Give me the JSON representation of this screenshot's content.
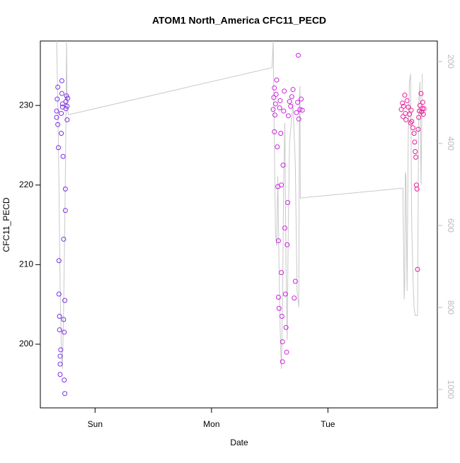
{
  "chart_data": {
    "type": "scatter",
    "title": "ATOM1 North_America CFC11_PECD",
    "xlabel": "Date",
    "ylabel": "CFC11_PECD",
    "xlim": [
      -0.47,
      2.94
    ],
    "xticks": [
      {
        "value": 0,
        "label": "Sun"
      },
      {
        "value": 1,
        "label": "Mon"
      },
      {
        "value": 2,
        "label": "Tue"
      }
    ],
    "ylim": [
      192,
      238.1
    ],
    "yticks": [
      200,
      210,
      220,
      230
    ],
    "y2lim": [
      1045,
      150
    ],
    "y2ticks": [
      200,
      400,
      600,
      800,
      1000
    ],
    "series": [
      {
        "color": "#7b2ee6",
        "x": [
          -0.33,
          -0.33,
          -0.325,
          -0.32,
          -0.32,
          -0.315,
          -0.31,
          -0.31,
          -0.305,
          -0.305,
          -0.3,
          -0.3,
          -0.3,
          -0.295,
          -0.29,
          -0.29,
          -0.285,
          -0.285,
          -0.28,
          -0.28,
          -0.275,
          -0.27,
          -0.27,
          -0.265,
          -0.265,
          -0.26,
          -0.26,
          -0.255,
          -0.255,
          -0.25,
          -0.25,
          -0.245,
          -0.24,
          -0.24,
          -0.235
        ],
        "values": [
          228.5,
          229.3,
          230.8,
          227.6,
          232.3,
          224.7,
          210.5,
          206.3,
          201.8,
          203.5,
          198.5,
          196.2,
          197.5,
          199.3,
          229.0,
          226.5,
          231.5,
          233.1,
          229.8,
          230.2,
          223.6,
          213.2,
          203.1,
          201.5,
          195.5,
          193.8,
          205.5,
          219.5,
          216.8,
          229.6,
          230.5,
          231.2,
          228.2,
          229.9,
          230.9
        ]
      },
      {
        "color": "#cc22e0",
        "x": [
          1.53,
          1.535,
          1.54,
          1.54,
          1.545,
          1.55,
          1.555,
          1.56,
          1.565,
          1.57,
          1.575,
          1.575,
          1.58,
          1.585,
          1.59,
          1.595,
          1.6,
          1.6,
          1.605,
          1.61,
          1.61,
          1.615,
          1.62,
          1.625,
          1.63,
          1.635,
          1.64,
          1.645,
          1.65,
          1.655,
          1.66,
          1.67,
          1.68,
          1.69,
          1.7,
          1.71,
          1.72,
          1.73,
          1.74,
          1.745,
          1.75,
          1.76,
          1.77,
          1.78
        ],
        "values": [
          229.5,
          231.0,
          232.2,
          226.7,
          228.8,
          230.2,
          231.4,
          233.2,
          224.8,
          219.8,
          213.0,
          205.9,
          204.5,
          229.7,
          230.6,
          226.5,
          220.0,
          209.0,
          203.5,
          200.3,
          197.8,
          222.5,
          229.3,
          231.8,
          214.6,
          206.3,
          202.1,
          199.0,
          212.5,
          217.8,
          228.7,
          230.5,
          229.9,
          231.1,
          232.0,
          205.8,
          207.9,
          229.1,
          230.4,
          236.3,
          228.3,
          229.5,
          230.8,
          229.4
        ]
      },
      {
        "color": "#f0189c",
        "x": [
          2.63,
          2.64,
          2.645,
          2.65,
          2.66,
          2.665,
          2.67,
          2.68,
          2.69,
          2.7,
          2.71,
          2.715,
          2.72,
          2.73,
          2.74,
          2.745,
          2.75,
          2.755,
          2.76,
          2.765,
          2.77,
          2.775,
          2.78,
          2.785,
          2.79,
          2.8,
          2.805,
          2.81,
          2.815,
          2.82,
          2.825
        ],
        "values": [
          229.5,
          230.3,
          228.6,
          229.9,
          231.3,
          229.0,
          228.2,
          230.6,
          229.8,
          228.9,
          227.8,
          229.4,
          228.0,
          227.2,
          226.5,
          225.4,
          224.2,
          223.5,
          220.0,
          219.5,
          209.4,
          227.0,
          228.5,
          229.3,
          230.0,
          231.5,
          229.2,
          229.6,
          230.4,
          228.9,
          229.6
        ]
      },
      {
        "type": "line",
        "axis": "y2",
        "color": "#c8c8c8",
        "x": [
          -0.33,
          -0.32,
          -0.31,
          -0.3,
          -0.29,
          -0.28,
          -0.27,
          -0.26,
          -0.25,
          -0.245,
          -0.24,
          -0.23,
          1.52,
          1.53,
          1.54,
          1.55,
          1.56,
          1.57,
          1.58,
          1.59,
          1.6,
          1.61,
          1.62,
          1.63,
          1.64,
          1.65,
          1.66,
          1.67,
          1.7,
          1.72,
          1.735,
          1.75,
          1.755,
          1.76,
          1.763,
          2.644,
          2.655,
          2.66,
          2.665,
          2.67,
          2.68,
          2.69,
          2.7,
          2.71,
          2.72,
          2.73,
          2.74,
          2.75,
          2.77,
          2.78,
          2.79,
          2.8,
          2.81
        ],
        "values": [
          150,
          300,
          500,
          750,
          900,
          950,
          800,
          600,
          350,
          150,
          300,
          330,
          215,
          150,
          400,
          620,
          650,
          480,
          700,
          850,
          950,
          800,
          500,
          350,
          700,
          880,
          600,
          400,
          300,
          450,
          760,
          800,
          300,
          260,
          533,
          509,
          780,
          740,
          470,
          480,
          760,
          380,
          250,
          230,
          600,
          720,
          800,
          820,
          820,
          300,
          250,
          500,
          230
        ]
      }
    ]
  }
}
